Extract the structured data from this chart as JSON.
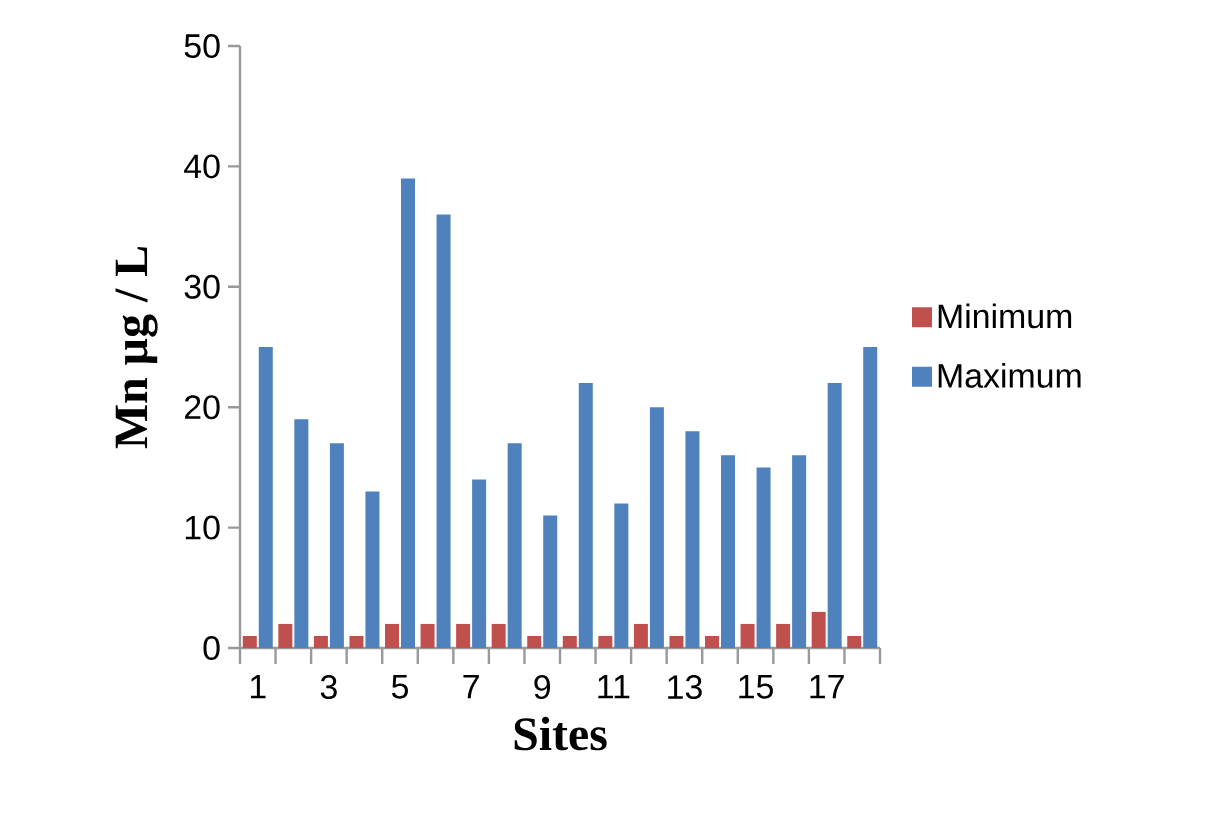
{
  "chart_data": {
    "type": "bar",
    "xlabel": "Sites",
    "ylabel": "Mn µg / L",
    "categories": [
      "1",
      null,
      "3",
      null,
      "5",
      null,
      "7",
      null,
      "9",
      null,
      "11",
      null,
      "13",
      null,
      "15",
      null,
      "17",
      null
    ],
    "series": [
      {
        "name": "Minimum",
        "color": "#c0504d",
        "values": [
          1,
          2,
          1,
          1,
          2,
          2,
          2,
          2,
          1,
          1,
          1,
          2,
          1,
          1,
          2,
          2,
          3,
          1
        ]
      },
      {
        "name": "Maximum",
        "color": "#4f81bd",
        "values": [
          25,
          19,
          17,
          13,
          39,
          36,
          14,
          17,
          11,
          22,
          12,
          20,
          18,
          16,
          15,
          16,
          22,
          25
        ]
      }
    ],
    "ylim": [
      0,
      50
    ],
    "yticks": [
      0,
      10,
      20,
      30,
      40,
      50
    ],
    "legend": "right",
    "grid": false
  }
}
